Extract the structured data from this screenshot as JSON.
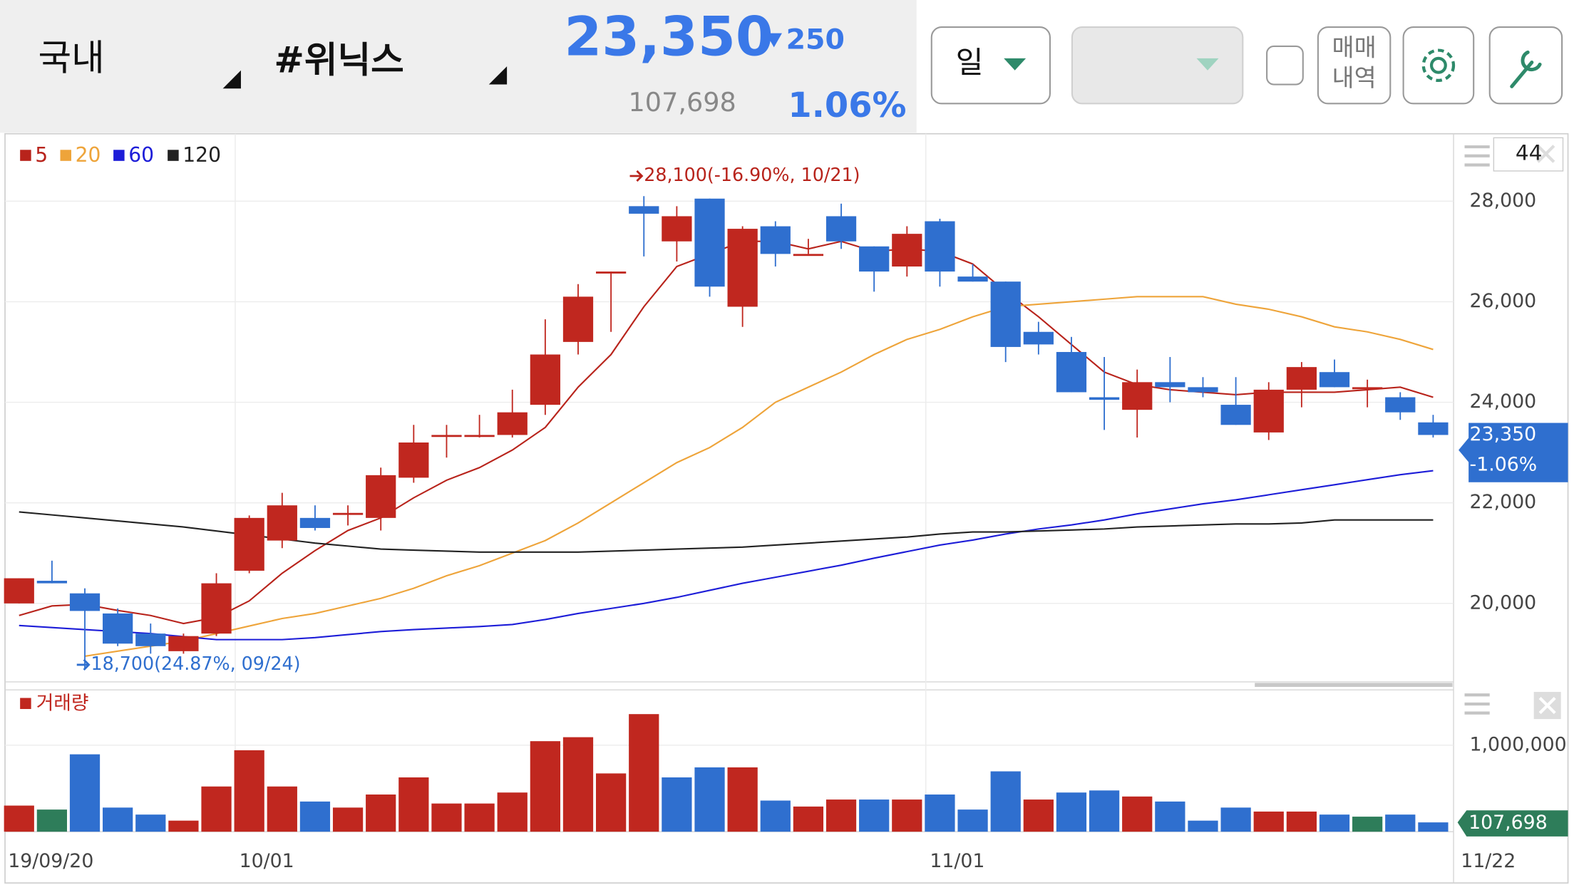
{
  "header": {
    "market": "국내",
    "stock": "#위닉스",
    "price": "23,350",
    "change": "250",
    "volume": "107,698",
    "change_rate": "1.06%"
  },
  "toolbar": {
    "period": "일",
    "history": [
      "매매",
      "내역"
    ],
    "count": "44"
  },
  "chart_data": [
    {
      "type": "candlestick",
      "categories": [
        "19/09/20",
        null,
        null,
        null,
        null,
        null,
        null,
        "10/01",
        null,
        null,
        null,
        null,
        null,
        null,
        null,
        null,
        null,
        null,
        null,
        null,
        null,
        null,
        null,
        null,
        null,
        null,
        null,
        null,
        "11/01",
        null,
        null,
        null,
        null,
        null,
        null,
        null,
        null,
        null,
        null,
        null,
        null,
        null,
        null,
        "11/22"
      ],
      "open": [
        20000,
        20450,
        20200,
        19800,
        19400,
        19050,
        19400,
        20650,
        21250,
        21700,
        21800,
        21700,
        22500,
        23350,
        23350,
        23350,
        23950,
        25200,
        26600,
        27900,
        27200,
        28050,
        25900,
        27500,
        26950,
        27700,
        27100,
        26700,
        27600,
        26500,
        26400,
        25400,
        25000,
        24100,
        23850,
        24400,
        24300,
        23950,
        23400,
        24250,
        24600,
        24300,
        24100,
        23600
      ],
      "high": [
        20500,
        20850,
        20300,
        19900,
        19600,
        19400,
        20600,
        21750,
        22200,
        21950,
        21950,
        22700,
        23550,
        23550,
        23750,
        24250,
        25650,
        26350,
        26600,
        28100,
        27900,
        28050,
        27500,
        27600,
        27250,
        27950,
        27100,
        27500,
        27650,
        26750,
        26400,
        25600,
        25300,
        24900,
        24650,
        24900,
        24500,
        24500,
        24400,
        24800,
        24850,
        24450,
        24200,
        23750
      ],
      "low": [
        20000,
        20400,
        18700,
        19150,
        19000,
        19000,
        19350,
        20600,
        21100,
        21450,
        21550,
        21450,
        22400,
        22900,
        23300,
        23300,
        23750,
        24950,
        25400,
        26900,
        26800,
        26100,
        25500,
        26700,
        26950,
        27050,
        26200,
        26500,
        26300,
        26400,
        24800,
        24950,
        24200,
        23450,
        23300,
        24000,
        24100,
        23550,
        23250,
        23900,
        24300,
        23900,
        23650,
        23300
      ],
      "close": [
        20500,
        20400,
        19850,
        19200,
        19150,
        19350,
        20400,
        21700,
        21950,
        21500,
        21800,
        22550,
        23200,
        23350,
        23350,
        23800,
        24950,
        26100,
        26600,
        27750,
        27700,
        26300,
        27450,
        26950,
        26950,
        27200,
        26600,
        27350,
        26600,
        26400,
        25100,
        25150,
        24200,
        24050,
        24400,
        24300,
        24200,
        23550,
        24250,
        24700,
        24300,
        24300,
        23800,
        23350
      ],
      "up_color": "#c0271f",
      "down_color": "#2f6fcf",
      "series": [
        {
          "name": "5",
          "color": "#b8231b",
          "values": [
            19760,
            19950,
            19980,
            19860,
            19760,
            19600,
            19720,
            20050,
            20600,
            21050,
            21450,
            21700,
            22100,
            22450,
            22700,
            23050,
            23500,
            24300,
            24950,
            25900,
            26700,
            26950,
            27200,
            27200,
            27050,
            27200,
            27000,
            27050,
            27000,
            26750,
            26200,
            25700,
            25150,
            24600,
            24350,
            24250,
            24200,
            24150,
            24200,
            24200,
            24200,
            24250,
            24300,
            24100
          ]
        },
        {
          "name": "20",
          "color": "#eea43a",
          "values": [
            null,
            null,
            18950,
            19050,
            19150,
            19250,
            19400,
            19550,
            19700,
            19800,
            19950,
            20100,
            20300,
            20550,
            20750,
            21000,
            21250,
            21600,
            22000,
            22400,
            22800,
            23100,
            23500,
            24000,
            24300,
            24600,
            24950,
            25250,
            25450,
            25700,
            25900,
            25950,
            26000,
            26050,
            26100,
            26100,
            26100,
            25950,
            25850,
            25700,
            25500,
            25400,
            25250,
            25050
          ]
        },
        {
          "name": "60",
          "color": "#1d1dd8",
          "values": [
            19560,
            19520,
            19480,
            19440,
            19400,
            19340,
            19280,
            19280,
            19280,
            19320,
            19380,
            19440,
            19480,
            19510,
            19540,
            19580,
            19680,
            19800,
            19900,
            20000,
            20120,
            20260,
            20400,
            20520,
            20640,
            20760,
            20900,
            21030,
            21160,
            21260,
            21380,
            21480,
            21560,
            21660,
            21780,
            21880,
            21980,
            22060,
            22160,
            22260,
            22360,
            22460,
            22560,
            22640
          ]
        },
        {
          "name": "120",
          "color": "#222222",
          "values": [
            21820,
            21760,
            21700,
            21640,
            21580,
            21520,
            21440,
            21360,
            21280,
            21200,
            21140,
            21080,
            21060,
            21040,
            21020,
            21020,
            21020,
            21020,
            21040,
            21060,
            21080,
            21100,
            21120,
            21160,
            21200,
            21240,
            21280,
            21320,
            21380,
            21420,
            21420,
            21440,
            21460,
            21480,
            21520,
            21540,
            21560,
            21580,
            21580,
            21600,
            21660,
            21660,
            21660,
            21660
          ]
        }
      ],
      "ylim": [
        18440,
        29340
      ],
      "yticks": [
        {
          "value": 20000,
          "label": "20,000"
        },
        {
          "value": 22000,
          "label": "22,000"
        },
        {
          "value": 24000,
          "label": "24,000"
        },
        {
          "value": 26000,
          "label": "26,000"
        },
        {
          "value": 28000,
          "label": "28,000"
        }
      ],
      "annotations": [
        {
          "text": "28,100(-16.90%, 10/21)",
          "color": "#b8231b"
        },
        {
          "text": "18,700(24.87%, 09/24)",
          "color": "#2f6fcf"
        }
      ],
      "price_tag": {
        "price": "23,350",
        "change": "-1.06%"
      },
      "grid": true
    },
    {
      "type": "bar",
      "series": [
        {
          "name": "거래량",
          "color": "#c0271f"
        }
      ],
      "values": [
        302000,
        256000,
        895000,
        279000,
        198000,
        128000,
        523000,
        942000,
        523000,
        349000,
        279000,
        430000,
        628000,
        326000,
        326000,
        453000,
        1047000,
        1093000,
        674000,
        1360000,
        628000,
        744000,
        744000,
        360000,
        291000,
        372000,
        372000,
        372000,
        430000,
        256000,
        698000,
        372000,
        453000,
        477000,
        407000,
        349000,
        128000,
        279000,
        233000,
        233000,
        198000,
        174000,
        198000,
        107698
      ],
      "value_labels": [
        null,
        null,
        null,
        null,
        null,
        null,
        null,
        null,
        null,
        null,
        null,
        null,
        null,
        null,
        null,
        null,
        null,
        null,
        null,
        null,
        null,
        null,
        null,
        null,
        null,
        null,
        null,
        null,
        null,
        null,
        null,
        null,
        null,
        null,
        null,
        null,
        null,
        null,
        null,
        null,
        null,
        null,
        null,
        "107,698"
      ],
      "colors": [
        "#c0271f",
        "#2e7d5a",
        "#2f6fcf",
        "#2f6fcf",
        "#2f6fcf",
        "#c0271f",
        "#c0271f",
        "#c0271f",
        "#c0271f",
        "#2f6fcf",
        "#c0271f",
        "#c0271f",
        "#c0271f",
        "#c0271f",
        "#c0271f",
        "#c0271f",
        "#c0271f",
        "#c0271f",
        "#c0271f",
        "#c0271f",
        "#2f6fcf",
        "#2f6fcf",
        "#c0271f",
        "#2f6fcf",
        "#c0271f",
        "#c0271f",
        "#2f6fcf",
        "#c0271f",
        "#2f6fcf",
        "#2f6fcf",
        "#2f6fcf",
        "#c0271f",
        "#2f6fcf",
        "#2f6fcf",
        "#c0271f",
        "#2f6fcf",
        "#2f6fcf",
        "#2f6fcf",
        "#c0271f",
        "#c0271f",
        "#2f6fcf",
        "#2e7d5a",
        "#2f6fcf",
        "#2f6fcf"
      ],
      "ylim": [
        0,
        1640000
      ],
      "yticks": [
        {
          "value": 1000000,
          "label": "1,000,000"
        }
      ],
      "grid": true
    }
  ]
}
